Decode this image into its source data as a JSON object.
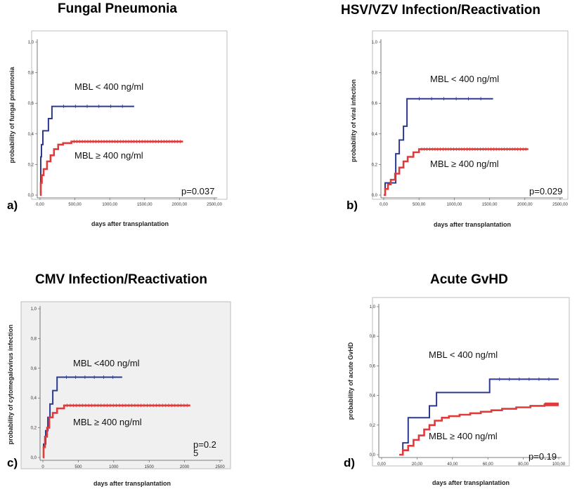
{
  "panels": [
    {
      "title": "Fungal Pneumonia",
      "letter": "a)",
      "pvalue": "p=0.037",
      "ylabel": "probability of fungal pneumonia",
      "xlabel": "days after transplantation",
      "yticks": [
        "0,0",
        "0,2",
        "0,4",
        "0,6",
        "0,8",
        "1,0"
      ],
      "xticks": [
        "0,00",
        "500,00",
        "1000,00",
        "1500,00",
        "2000,00",
        "2500,00"
      ],
      "group_low_label": "MBL < 400 ng/ml",
      "group_high_label": "MBL ≥ 400 ng/ml",
      "background": "#ffffff"
    },
    {
      "title": "HSV/VZV Infection/Reactivation",
      "letter": "b)",
      "pvalue": "p=0.029",
      "ylabel": "probability of viral infection",
      "xlabel": "days after transplantation",
      "yticks": [
        "0,0",
        "0,2",
        "0,4",
        "0,6",
        "0,8",
        "1,0"
      ],
      "xticks": [
        "0,00",
        "500,00",
        "1000,00",
        "1500,00",
        "2000,00",
        "2500,00"
      ],
      "group_low_label": "MBL < 400 ng/ml",
      "group_high_label": "MBL ≥ 400 ng/ml",
      "background": "#ffffff"
    },
    {
      "title": "CMV Infection/Reactivation",
      "letter": "c)",
      "pvalue": "p=0.2",
      "pvalue_wrap": "5",
      "ylabel": "probability of cytomegalovirus infection",
      "xlabel": "days after transplantation",
      "yticks": [
        "0,0",
        "0,2",
        "0,4",
        "0,6",
        "0,8",
        "1,0"
      ],
      "xticks": [
        "0",
        "500",
        "1000",
        "1500",
        "2000",
        "2500"
      ],
      "group_low_label": "MBL <400 ng/ml",
      "group_high_label": "MBL ≥ 400 ng/ml",
      "background": "#f0f0f0"
    },
    {
      "title": "Acute GvHD",
      "letter": "d)",
      "pvalue": "p=0.19",
      "ylabel": "probability of acute GvHD",
      "xlabel": "days after transplantation",
      "yticks": [
        "0,0",
        "0,2",
        "0,4",
        "0,6",
        "0,8",
        "1,0"
      ],
      "xticks": [
        "0,00",
        "20,00",
        "40,00",
        "60,00",
        "80,00",
        "100,00"
      ],
      "group_low_label": "MBL < 400 ng/ml",
      "group_high_label": "MBL ≥ 400 ng/ml",
      "background": "#ffffff"
    }
  ],
  "colors": {
    "low": "#2b3a8f",
    "high": "#e03a3a",
    "axis": "#555555"
  },
  "chart_data": [
    {
      "type": "line",
      "title": "Fungal Pneumonia",
      "xlabel": "days after transplantation",
      "ylabel": "probability of fungal pneumonia",
      "xlim": [
        0,
        2500
      ],
      "ylim": [
        0,
        1
      ],
      "series": [
        {
          "name": "MBL < 400 ng/ml",
          "step": true,
          "x": [
            0,
            10,
            20,
            40,
            70,
            120,
            170,
            1350
          ],
          "y": [
            0,
            0.25,
            0.33,
            0.42,
            0.42,
            0.5,
            0.58,
            0.58
          ]
        },
        {
          "name": "MBL ≥ 400 ng/ml",
          "step": true,
          "x": [
            0,
            10,
            25,
            50,
            100,
            150,
            200,
            260,
            330,
            450,
            2050
          ],
          "y": [
            0,
            0.08,
            0.13,
            0.17,
            0.22,
            0.26,
            0.3,
            0.33,
            0.34,
            0.35,
            0.35
          ]
        }
      ]
    },
    {
      "type": "line",
      "title": "HSV/VZV Infection/Reactivation",
      "xlabel": "days after transplantation",
      "ylabel": "probability of viral infection",
      "xlim": [
        0,
        2500
      ],
      "ylim": [
        0,
        1
      ],
      "series": [
        {
          "name": "MBL < 400 ng/ml",
          "step": true,
          "x": [
            0,
            20,
            120,
            170,
            220,
            280,
            330,
            1550
          ],
          "y": [
            0,
            0.08,
            0.08,
            0.27,
            0.36,
            0.45,
            0.63,
            0.63
          ]
        },
        {
          "name": "MBL ≥ 400 ng/ml",
          "step": true,
          "x": [
            0,
            20,
            60,
            100,
            160,
            220,
            280,
            340,
            420,
            500,
            2050
          ],
          "y": [
            0,
            0.04,
            0.07,
            0.1,
            0.14,
            0.18,
            0.22,
            0.25,
            0.28,
            0.3,
            0.3
          ]
        }
      ]
    },
    {
      "type": "line",
      "title": "CMV Infection/Reactivation",
      "xlabel": "days after transplantation",
      "ylabel": "probability of cytomegalovirus infection",
      "xlim": [
        0,
        2500
      ],
      "ylim": [
        0,
        1
      ],
      "series": [
        {
          "name": "MBL <400 ng/ml",
          "step": true,
          "x": [
            0,
            10,
            40,
            70,
            100,
            140,
            200,
            1120
          ],
          "y": [
            0,
            0.09,
            0.18,
            0.27,
            0.36,
            0.45,
            0.54,
            0.54
          ]
        },
        {
          "name": "MBL ≥ 400 ng/ml",
          "step": true,
          "x": [
            0,
            10,
            30,
            60,
            90,
            140,
            200,
            300,
            2080
          ],
          "y": [
            0,
            0.07,
            0.14,
            0.2,
            0.27,
            0.3,
            0.33,
            0.35,
            0.35
          ]
        }
      ]
    },
    {
      "type": "line",
      "title": "Acute GvHD",
      "xlabel": "days after transplantation",
      "ylabel": "probability of acute GvHD",
      "xlim": [
        0,
        100
      ],
      "ylim": [
        0,
        1
      ],
      "series": [
        {
          "name": "MBL < 400 ng/ml",
          "step": true,
          "x": [
            10,
            12,
            15,
            27,
            31,
            61,
            100
          ],
          "y": [
            0,
            0.08,
            0.25,
            0.33,
            0.42,
            0.51,
            0.51
          ]
        },
        {
          "name": "MBL ≥ 400 ng/ml",
          "step": true,
          "x": [
            10,
            12,
            15,
            18,
            21,
            24,
            27,
            30,
            34,
            38,
            44,
            50,
            56,
            62,
            68,
            76,
            84,
            92,
            100
          ],
          "y": [
            0,
            0.03,
            0.06,
            0.1,
            0.13,
            0.17,
            0.2,
            0.23,
            0.25,
            0.26,
            0.27,
            0.28,
            0.29,
            0.3,
            0.31,
            0.32,
            0.33,
            0.34,
            0.34
          ]
        }
      ]
    }
  ]
}
